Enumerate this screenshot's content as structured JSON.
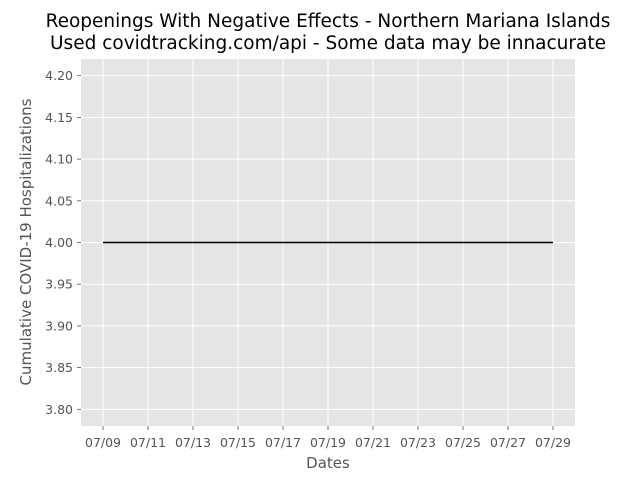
{
  "chart_data": {
    "type": "line",
    "title_lines": [
      "Reopenings With Negative Effects - Northern Mariana Islands",
      "Used covidtracking.com/api - Some data may be innacurate"
    ],
    "xlabel": "Dates",
    "ylabel": "Cumulative COVID-19 Hospitalizations",
    "x_ticks": [
      "07/09",
      "07/11",
      "07/13",
      "07/15",
      "07/17",
      "07/19",
      "07/21",
      "07/23",
      "07/25",
      "07/27",
      "07/29"
    ],
    "y_ticks": [
      "3.80",
      "3.85",
      "3.90",
      "3.95",
      "4.00",
      "4.05",
      "4.10",
      "4.15",
      "4.20"
    ],
    "ylim": [
      3.78,
      4.22
    ],
    "grid": true,
    "series": [
      {
        "color": "#000000",
        "x": [
          "07/09",
          "07/10",
          "07/11",
          "07/12",
          "07/13",
          "07/14",
          "07/15",
          "07/16",
          "07/17",
          "07/18",
          "07/19",
          "07/20",
          "07/21",
          "07/22",
          "07/23",
          "07/24",
          "07/25",
          "07/26",
          "07/27",
          "07/28",
          "07/29"
        ],
        "y": [
          4,
          4,
          4,
          4,
          4,
          4,
          4,
          4,
          4,
          4,
          4,
          4,
          4,
          4,
          4,
          4,
          4,
          4,
          4,
          4,
          4
        ]
      }
    ],
    "colors": {
      "plot_background": "#e5e5e5",
      "grid": "#ffffff",
      "tick_text": "#555555"
    }
  }
}
